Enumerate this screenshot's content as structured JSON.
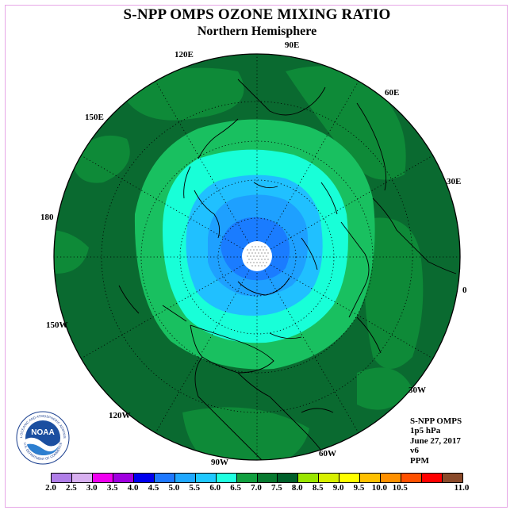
{
  "title": "S-NPP OMPS OZONE MIXING RATIO",
  "subtitle": "Northern Hemisphere",
  "longitude_labels": [
    "90E",
    "60E",
    "30E",
    "0",
    "30W",
    "60W",
    "90W",
    "120W",
    "150W",
    "180",
    "150E",
    "120E"
  ],
  "info": {
    "product": "S-NPP OMPS",
    "pressure": "1p5 hPa",
    "date": "June 27, 2017",
    "version": "v6",
    "units": "PPM"
  },
  "logo": {
    "text": "NOAA",
    "ring_text": "NATIONAL OCEANIC AND ATMOSPHERIC ADMINISTRATION",
    "ring_text_bottom": "U.S. DEPARTMENT OF COMMERCE",
    "icon": "noaa-logo-icon"
  },
  "colorbar": {
    "ticks": [
      "2.0",
      "2.5",
      "3.0",
      "3.5",
      "4.0",
      "4.5",
      "5.0",
      "5.5",
      "6.0",
      "6.5",
      "7.0",
      "7.5",
      "8.0",
      "8.5",
      "9.0",
      "9.5",
      "10.0",
      "10.5",
      "11.0"
    ],
    "colors": [
      "#b07ee8",
      "#d8b0f0",
      "#f000f0",
      "#a000e0",
      "#0000ee",
      "#1e78ff",
      "#20a8ff",
      "#20c8ff",
      "#20ffe0",
      "#12a040",
      "#087a30",
      "#00602a",
      "#9ae600",
      "#d8f000",
      "#ffff00",
      "#ffc000",
      "#ff9000",
      "#ff5000",
      "#ff0000",
      "#8a4a2a"
    ]
  },
  "map_colors": {
    "outer_ring": "#0a6a30",
    "band_65": "#0e8a38",
    "band_60": "#19c060",
    "band_55": "#18ffd8",
    "band_50": "#20c0ff",
    "band_45": "#1ea0ff",
    "band_40": "#1a7cff",
    "pole": "#ffffff"
  }
}
